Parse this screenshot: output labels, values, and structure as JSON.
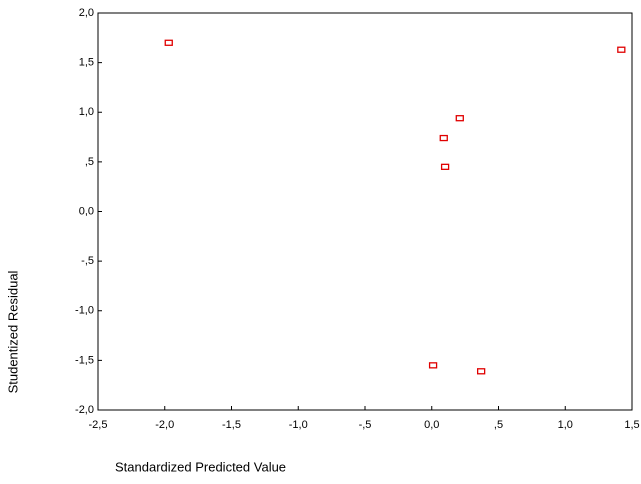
{
  "chart_data": {
    "type": "scatter",
    "xlabel": "Standardized Predicted Value",
    "ylabel": "Studentized Residual",
    "xlim": [
      -2.5,
      1.5
    ],
    "ylim": [
      -2.0,
      2.0
    ],
    "xticks": [
      {
        "value": -2.5,
        "label": "-2,5"
      },
      {
        "value": -2.0,
        "label": "-2,0"
      },
      {
        "value": -1.5,
        "label": "-1,5"
      },
      {
        "value": -1.0,
        "label": "-1,0"
      },
      {
        "value": -0.5,
        "label": "-,5"
      },
      {
        "value": 0.0,
        "label": "0,0"
      },
      {
        "value": 0.5,
        "label": ",5"
      },
      {
        "value": 1.0,
        "label": "1,0"
      },
      {
        "value": 1.5,
        "label": "1,5"
      }
    ],
    "yticks": [
      {
        "value": 2.0,
        "label": "2,0"
      },
      {
        "value": 1.5,
        "label": "1,5"
      },
      {
        "value": 1.0,
        "label": "1,0"
      },
      {
        "value": 0.5,
        "label": ",5"
      },
      {
        "value": 0.0,
        "label": "0,0"
      },
      {
        "value": -0.5,
        "label": "-,5"
      },
      {
        "value": -1.0,
        "label": "-1,0"
      },
      {
        "value": -1.5,
        "label": "-1,5"
      },
      {
        "value": -2.0,
        "label": "-2,0"
      }
    ],
    "x": [
      -1.97,
      1.42,
      0.21,
      0.09,
      0.1,
      0.01,
      0.37
    ],
    "values": [
      1.7,
      1.63,
      0.94,
      0.74,
      0.45,
      -1.55,
      -1.61
    ],
    "color": "#e00000"
  }
}
